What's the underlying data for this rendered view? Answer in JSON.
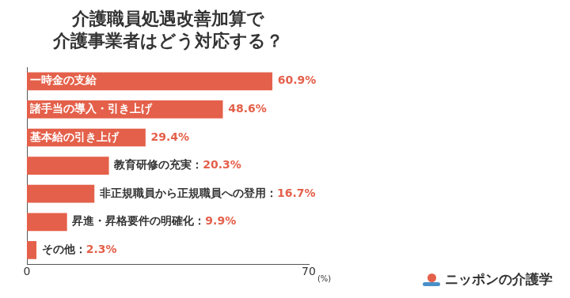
{
  "chart_data": {
    "type": "bar",
    "orientation": "horizontal",
    "title": "介護職員処遇改善加算で\n介護事業者はどう対応する？",
    "categories": [
      "一時金の支給",
      "諸手当の導入・引き上げ",
      "基本給の引き上げ",
      "教育研修の充実：",
      "非正規職員から正規職員への登用：",
      "昇進・昇格要件の明確化：",
      "その他："
    ],
    "values": [
      60.9,
      48.6,
      29.4,
      20.3,
      16.7,
      9.9,
      2.3
    ],
    "value_labels": [
      "60.9%",
      "48.6%",
      "29.4%",
      "20.3%",
      "16.7%",
      "9.9%",
      "2.3%"
    ],
    "data_labels": true,
    "color": "#e4604a",
    "x_label": "(%)",
    "xlim": [
      0,
      70
    ],
    "xticks": [
      0,
      70
    ],
    "grid": false,
    "legend": false,
    "tick_labels": "x",
    "annotations": [
      "ニッポンの介護学"
    ]
  }
}
